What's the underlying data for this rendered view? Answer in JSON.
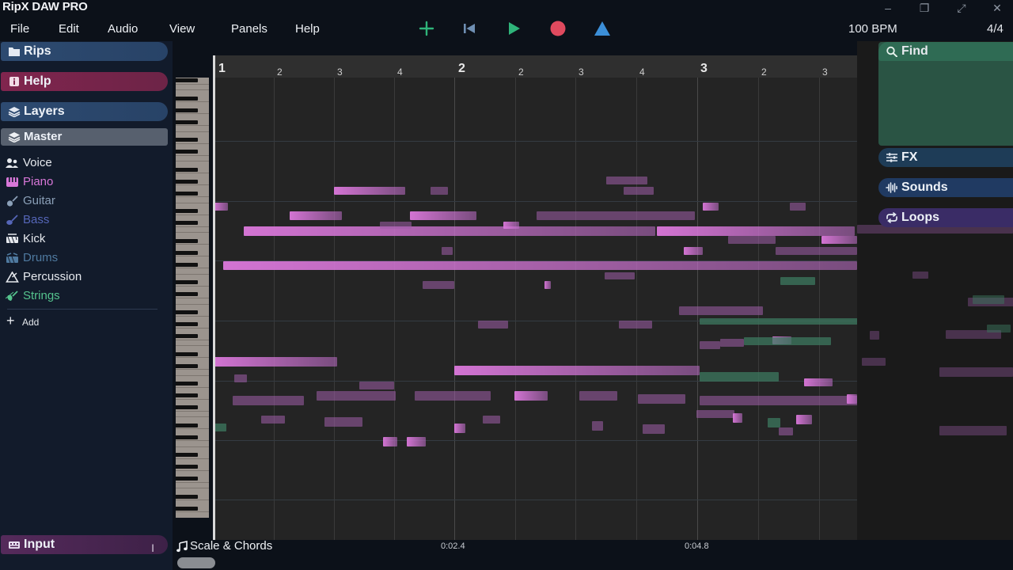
{
  "app": {
    "title": "RipX DAW PRO"
  },
  "window_controls": [
    "minimize-icon",
    "restore-icon",
    "expand-icon",
    "close-icon"
  ],
  "menu": [
    "File",
    "Edit",
    "Audio",
    "View",
    "Panels",
    "Help"
  ],
  "transport": {
    "buttons": [
      "add-icon",
      "skip-back-icon",
      "play-icon",
      "record-icon",
      "metronome-icon"
    ],
    "bpm": "100 BPM",
    "time_signature": "4/4"
  },
  "left_panel": {
    "rips": "Rips",
    "help": "Help",
    "layers": "Layers",
    "master": "Master",
    "items": [
      {
        "label": "Voice",
        "icon": "voice-icon",
        "color": "#e6e9ee"
      },
      {
        "label": "Piano",
        "icon": "piano-icon",
        "color": "#d877d8"
      },
      {
        "label": "Guitar",
        "icon": "guitar-icon",
        "color": "#8ba0b8"
      },
      {
        "label": "Bass",
        "icon": "bass-icon",
        "color": "#5566b8"
      },
      {
        "label": "Kick",
        "icon": "kick-icon",
        "color": "#e6e9ee"
      },
      {
        "label": "Drums",
        "icon": "drums-icon",
        "color": "#4f7aa0"
      },
      {
        "label": "Percussion",
        "icon": "percussion-icon",
        "color": "#e6e9ee"
      },
      {
        "label": "Strings",
        "icon": "strings-icon",
        "color": "#55c48e"
      }
    ],
    "add": "Add",
    "input": "Input"
  },
  "right_panel": {
    "find": "Find",
    "fx": "FX",
    "sounds": "Sounds",
    "loops": "Loops"
  },
  "ruler": {
    "bars": [
      "1",
      "2",
      "3"
    ],
    "beats": [
      "2",
      "3",
      "4",
      "2",
      "3",
      "4",
      "2",
      "3"
    ]
  },
  "bottom": {
    "scale_chords": "Scale & Chords",
    "times": [
      "0:02.4",
      "0:04.8"
    ]
  },
  "colors": {
    "piano_note": "#dc78dc",
    "strings_note": "#3c785f",
    "play": "#2fb47a",
    "record": "#e04a5e",
    "metronome": "#3c8fd8",
    "add": "#2fb47a"
  }
}
